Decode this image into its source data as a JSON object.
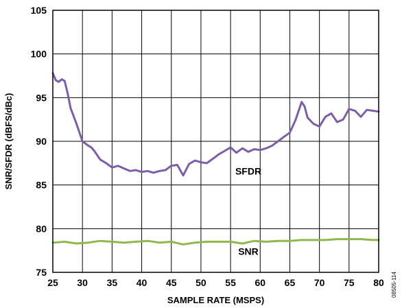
{
  "chart_data": {
    "type": "line",
    "title": "",
    "xlabel": "SAMPLE RATE (MSPS)",
    "ylabel": "SNR/SFDR (dBFS/dBc)",
    "xlim": [
      25,
      80
    ],
    "ylim": [
      75,
      105
    ],
    "xticks": [
      25,
      30,
      35,
      40,
      45,
      50,
      55,
      60,
      65,
      70,
      75,
      80
    ],
    "yticks": [
      75,
      80,
      85,
      90,
      95,
      100,
      105
    ],
    "grid": true,
    "legend": "none",
    "figure_id": "08505-114",
    "series": [
      {
        "name": "SFDR",
        "color": "#7b5ea7",
        "x": [
          25,
          25.5,
          26,
          26.5,
          27,
          27.5,
          28,
          29,
          30,
          31,
          31.5,
          32,
          33,
          34,
          35,
          36,
          37,
          38,
          39,
          40,
          41,
          42,
          43,
          44,
          45,
          46,
          47,
          48,
          49,
          50,
          51,
          52,
          53,
          54,
          55,
          56,
          57,
          58,
          59,
          60,
          61,
          62,
          63,
          64,
          65,
          66,
          66.5,
          67,
          67.5,
          68,
          69,
          70,
          71,
          72,
          73,
          74,
          75,
          76,
          77,
          78,
          79,
          80
        ],
        "y": [
          97.8,
          97.0,
          96.8,
          97.1,
          96.9,
          95.5,
          93.8,
          92.0,
          90.0,
          89.5,
          89.3,
          88.9,
          87.9,
          87.5,
          87.0,
          87.2,
          86.9,
          86.6,
          86.7,
          86.5,
          86.6,
          86.4,
          86.6,
          86.7,
          87.2,
          87.3,
          86.1,
          87.4,
          87.8,
          87.6,
          87.5,
          88.0,
          88.5,
          88.9,
          89.3,
          88.7,
          89.2,
          88.8,
          89.1,
          89.0,
          89.2,
          89.5,
          90.0,
          90.5,
          91.0,
          92.5,
          93.5,
          94.5,
          94.0,
          92.7,
          92.0,
          91.7,
          92.8,
          93.2,
          92.2,
          92.5,
          93.7,
          93.5,
          92.8,
          93.6,
          93.5,
          93.4
        ]
      },
      {
        "name": "SNR",
        "color": "#8fb84c",
        "x": [
          25,
          27,
          29,
          31,
          33,
          35,
          37,
          39,
          41,
          43,
          45,
          47,
          49,
          51,
          53,
          55,
          57,
          59,
          61,
          63,
          65,
          67,
          69,
          71,
          73,
          75,
          77,
          79,
          80
        ],
        "y": [
          78.4,
          78.5,
          78.3,
          78.4,
          78.6,
          78.5,
          78.4,
          78.5,
          78.6,
          78.4,
          78.5,
          78.2,
          78.4,
          78.5,
          78.5,
          78.5,
          78.3,
          78.6,
          78.5,
          78.6,
          78.6,
          78.7,
          78.7,
          78.7,
          78.8,
          78.8,
          78.8,
          78.7,
          78.7
        ]
      }
    ],
    "annotations": [
      {
        "text": "SFDR",
        "x": 58,
        "y": 86.2
      },
      {
        "text": "SNR",
        "x": 58,
        "y": 77.0
      }
    ]
  }
}
